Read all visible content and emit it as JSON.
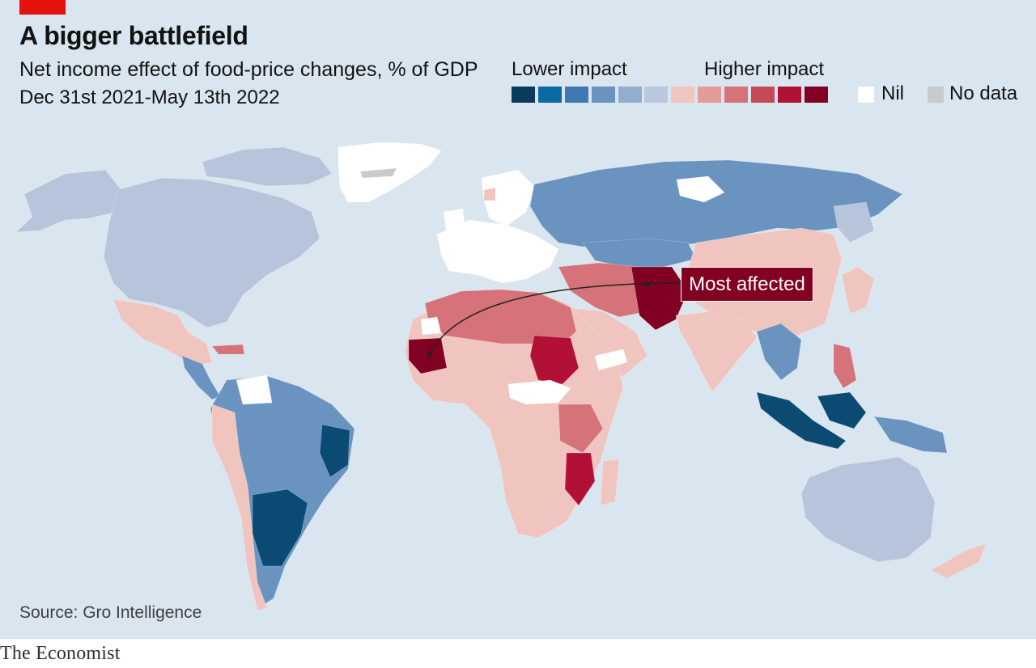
{
  "header": {
    "title": "A bigger battlefield",
    "subtitle": "Net income effect of food-price changes, % of GDP",
    "date_range": "Dec 31st 2021-May 13th 2022"
  },
  "legend": {
    "lower_label": "Lower impact",
    "higher_label": "Higher impact",
    "scale_colors": [
      "#0b3a5c",
      "#0c6aa3",
      "#3f78b3",
      "#6a93c0",
      "#93adcf",
      "#b9c8df",
      "#f0c4bf",
      "#e29b99",
      "#d6727a",
      "#c44a58",
      "#b31036",
      "#820022"
    ],
    "nil_label": "Nil",
    "nil_color": "#ffffff",
    "no_data_label": "No data",
    "no_data_color": "#c8cbcd"
  },
  "annotation": {
    "label": "Most affected",
    "color": "#820022"
  },
  "colors": {
    "ocean": "#d9e6ef",
    "brand_red": "#e3120b",
    "low_light": "#b7c5dc",
    "low_mid": "#6a93c0",
    "low_dark": "#0b4a72",
    "high_light": "#f0c4bf",
    "high_mid": "#d6727a",
    "high_dark": "#b31036",
    "highest": "#820022"
  },
  "source": "Source: Gro Intelligence",
  "footer": "The Economist"
}
